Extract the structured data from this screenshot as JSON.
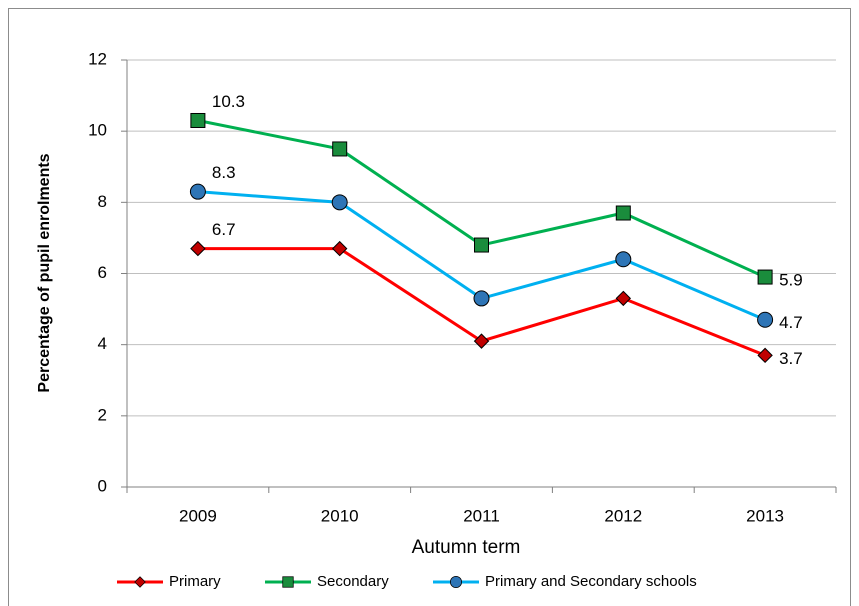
{
  "chart_data": {
    "type": "line",
    "x_label": "Autumn term",
    "y_label": "Percentage of pupil enrolments",
    "categories": [
      "2009",
      "2010",
      "2011",
      "2012",
      "2013"
    ],
    "ylim": [
      0,
      12
    ],
    "yticks": [
      0,
      2,
      4,
      6,
      8,
      10,
      12
    ],
    "grid": true,
    "legend": "bottom",
    "series": [
      {
        "name": "Primary",
        "color": "#ff0000",
        "marker": "diamond",
        "marker_color": "#c00000",
        "values": [
          6.7,
          6.7,
          4.1,
          5.3,
          3.7
        ],
        "value_labels": [
          "6.7",
          null,
          null,
          null,
          "3.7"
        ]
      },
      {
        "name": "Secondary",
        "color": "#00b050",
        "marker": "square",
        "marker_color": "#1a8c3c",
        "values": [
          10.3,
          9.5,
          6.8,
          7.7,
          5.9
        ],
        "value_labels": [
          "10.3",
          null,
          null,
          null,
          "5.9"
        ]
      },
      {
        "name": "Primary and Secondary schools",
        "color": "#00b0f0",
        "marker": "circle",
        "marker_color": "#2e75b6",
        "values": [
          8.3,
          8.0,
          5.3,
          6.4,
          4.7
        ],
        "value_labels": [
          "8.3",
          null,
          null,
          null,
          "4.7"
        ]
      }
    ]
  }
}
